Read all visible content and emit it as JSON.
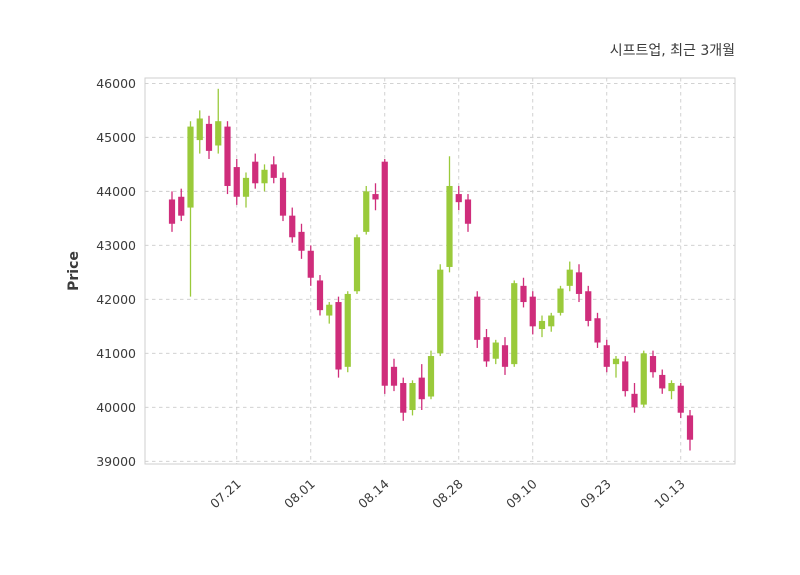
{
  "chart_data": {
    "type": "candlestick",
    "title": "시프트업, 최근 3개월",
    "ylabel": "Price",
    "grid": true,
    "grid_style": "dashed",
    "ylim": [
      38950,
      46100
    ],
    "y_ticks": [
      39000,
      40000,
      41000,
      42000,
      43000,
      44000,
      45000,
      46000
    ],
    "x_ticks": [
      {
        "index": 7,
        "label": "07.21"
      },
      {
        "index": 15,
        "label": "08.01"
      },
      {
        "index": 23,
        "label": "08.14"
      },
      {
        "index": 31,
        "label": "08.28"
      },
      {
        "index": 39,
        "label": "09.10"
      },
      {
        "index": 47,
        "label": "09.23"
      },
      {
        "index": 55,
        "label": "10.13"
      }
    ],
    "up_color": "#9aca3b",
    "down_color": "#cf2d7b",
    "grid_color": "#cccccc",
    "border_color": "#cfcfcf",
    "text_color": "#3b3b3b",
    "candles_format": [
      "open",
      "high",
      "low",
      "close"
    ],
    "candles": [
      [
        43850,
        44000,
        43250,
        43400
      ],
      [
        43900,
        44050,
        43450,
        43550
      ],
      [
        43700,
        45300,
        42050,
        45200
      ],
      [
        44950,
        45500,
        44700,
        45350
      ],
      [
        45250,
        45400,
        44600,
        44750
      ],
      [
        44850,
        45900,
        44700,
        45300
      ],
      [
        45200,
        45300,
        43950,
        44100
      ],
      [
        44450,
        44600,
        43750,
        43900
      ],
      [
        43900,
        44350,
        43700,
        44250
      ],
      [
        44550,
        44700,
        44050,
        44150
      ],
      [
        44150,
        44500,
        44000,
        44400
      ],
      [
        44500,
        44650,
        44150,
        44250
      ],
      [
        44250,
        44350,
        43450,
        43550
      ],
      [
        43550,
        43700,
        43050,
        43150
      ],
      [
        43250,
        43400,
        42750,
        42900
      ],
      [
        42900,
        43000,
        42250,
        42400
      ],
      [
        42350,
        42450,
        41700,
        41800
      ],
      [
        41700,
        41950,
        41550,
        41900
      ],
      [
        41950,
        42050,
        40550,
        40700
      ],
      [
        40750,
        42150,
        40650,
        42100
      ],
      [
        42150,
        43200,
        42100,
        43150
      ],
      [
        43250,
        44100,
        43200,
        44000
      ],
      [
        43950,
        44150,
        43650,
        43850
      ],
      [
        44550,
        44600,
        40250,
        40400
      ],
      [
        40750,
        40900,
        40300,
        40400
      ],
      [
        40450,
        40550,
        39750,
        39900
      ],
      [
        39950,
        40500,
        39850,
        40450
      ],
      [
        40550,
        40800,
        39950,
        40150
      ],
      [
        40200,
        41050,
        40150,
        40950
      ],
      [
        41000,
        42650,
        40950,
        42550
      ],
      [
        42600,
        44650,
        42500,
        44100
      ],
      [
        43950,
        44100,
        43650,
        43800
      ],
      [
        43850,
        43950,
        43250,
        43400
      ],
      [
        42050,
        42150,
        41100,
        41250
      ],
      [
        41300,
        41450,
        40750,
        40850
      ],
      [
        40900,
        41250,
        40800,
        41200
      ],
      [
        41150,
        41300,
        40600,
        40750
      ],
      [
        40800,
        42350,
        40750,
        42300
      ],
      [
        42250,
        42400,
        41850,
        41950
      ],
      [
        42050,
        42150,
        41350,
        41500
      ],
      [
        41450,
        41700,
        41300,
        41600
      ],
      [
        41500,
        41750,
        41400,
        41700
      ],
      [
        41750,
        42250,
        41700,
        42200
      ],
      [
        42250,
        42700,
        42150,
        42550
      ],
      [
        42500,
        42650,
        41950,
        42100
      ],
      [
        42150,
        42250,
        41500,
        41600
      ],
      [
        41650,
        41750,
        41100,
        41200
      ],
      [
        41150,
        41250,
        40650,
        40750
      ],
      [
        40800,
        40950,
        40550,
        40900
      ],
      [
        40850,
        40950,
        40200,
        40300
      ],
      [
        40250,
        40450,
        39900,
        40000
      ],
      [
        40050,
        41050,
        40000,
        41000
      ],
      [
        40950,
        41050,
        40550,
        40650
      ],
      [
        40600,
        40700,
        40250,
        40350
      ],
      [
        40300,
        40500,
        40150,
        40450
      ],
      [
        40400,
        40450,
        39800,
        39900
      ],
      [
        39850,
        39950,
        39200,
        39400
      ]
    ]
  }
}
